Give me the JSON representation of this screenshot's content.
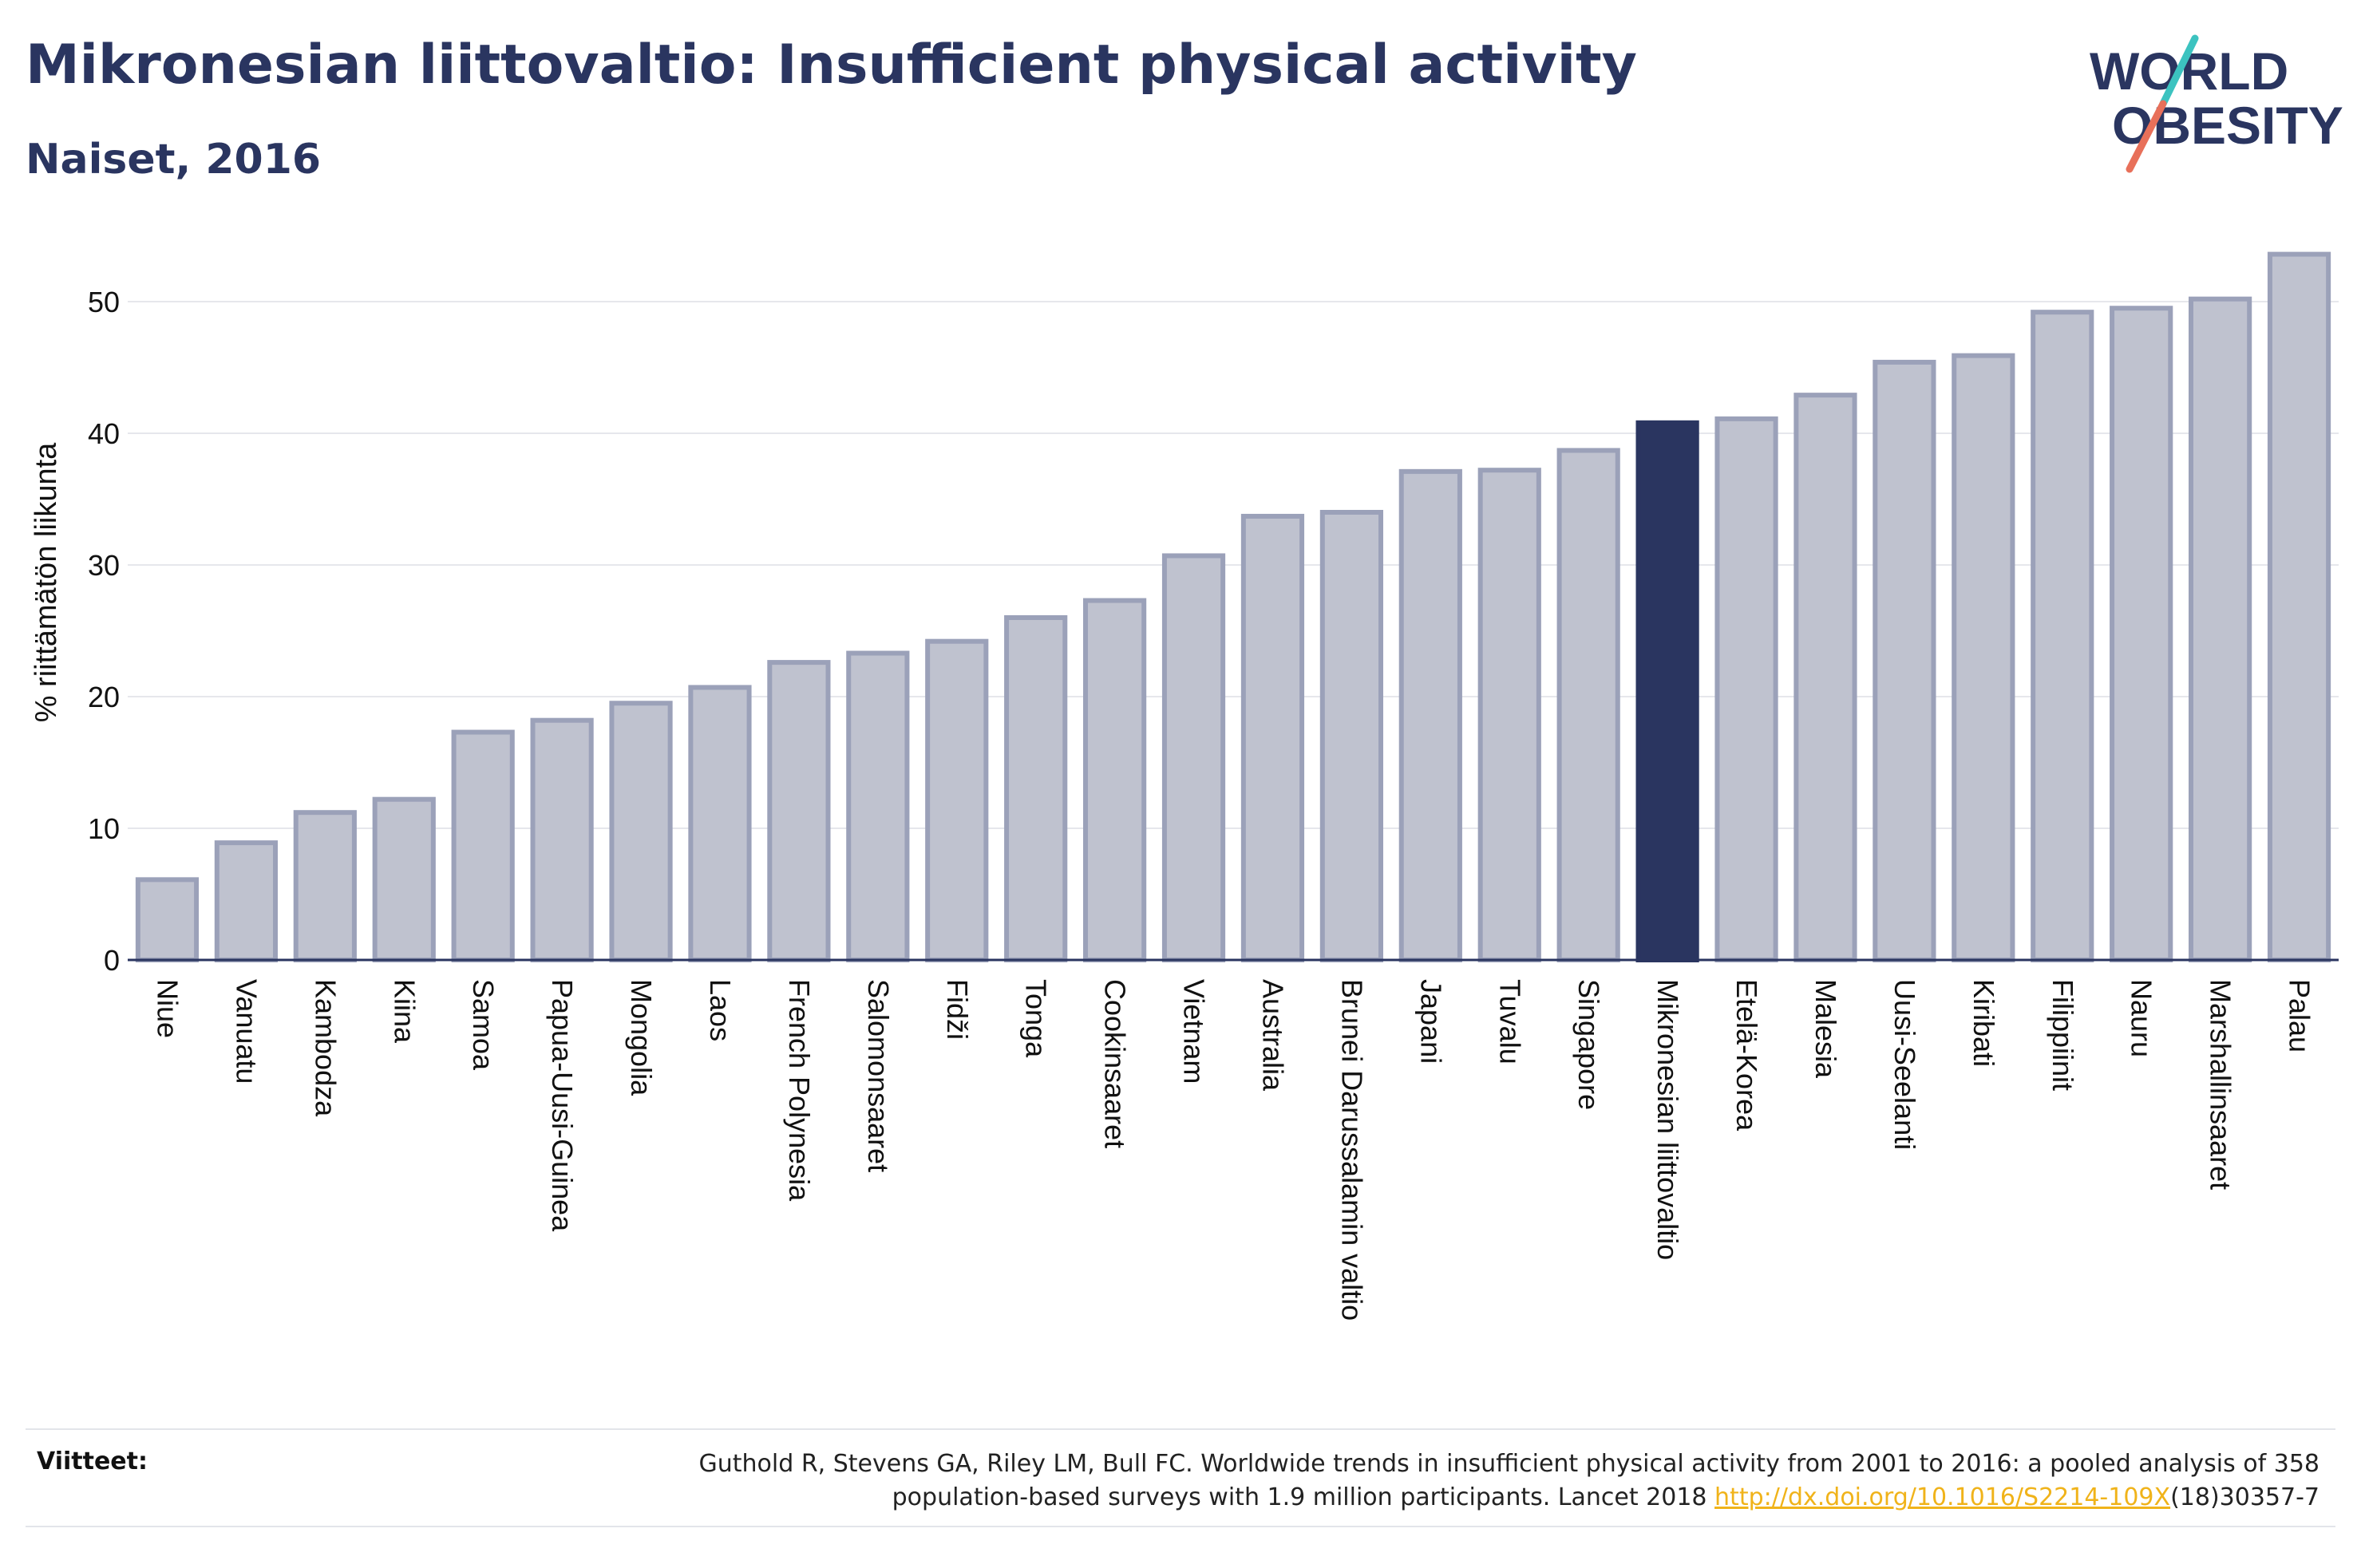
{
  "header": {
    "title": "Mikronesian liittovaltio: Insufficient physical activity",
    "subtitle": "Naiset, 2016"
  },
  "logo": {
    "line1": "WORLD",
    "line2": "OBESITY",
    "slash_colors": [
      "#3cc3c0",
      "#e8705a"
    ]
  },
  "colors": {
    "bar_default": "#bfc2cf",
    "bar_default_stroke": "#9ba1b9",
    "bar_highlight": "#2a3560",
    "text": "#2a3560",
    "grid": "#e6e7ec",
    "link": "#f0b31a"
  },
  "chart_data": {
    "type": "bar",
    "title": "",
    "xlabel": "",
    "ylabel": "% riittämätön liikunta",
    "ylim": [
      0,
      55
    ],
    "yticks": [
      0,
      10,
      20,
      30,
      40,
      50
    ],
    "grid": true,
    "highlight": "Mikronesian liittovaltio",
    "categories": [
      "Niue",
      "Vanuatu",
      "Kambodza",
      "Kiina",
      "Samoa",
      "Papua-Uusi-Guinea",
      "Mongolia",
      "Laos",
      "French Polynesia",
      "Salomonsaaret",
      "Fidži",
      "Tonga",
      "Cookinsaaret",
      "Vietnam",
      "Australia",
      "Brunei Darussalamin valtio",
      "Japani",
      "Tuvalu",
      "Singapore",
      "Mikronesian liittovaltio",
      "Etelä-Korea",
      "Malesia",
      "Uusi-Seelanti",
      "Kiribati",
      "Filippiinit",
      "Nauru",
      "Marshallinsaaret",
      "Palau"
    ],
    "values": [
      6.1,
      8.9,
      11.2,
      12.2,
      17.3,
      18.2,
      19.5,
      20.7,
      22.6,
      23.3,
      24.2,
      26.0,
      27.3,
      30.7,
      33.7,
      34.0,
      37.1,
      37.2,
      38.7,
      40.8,
      41.1,
      42.9,
      45.4,
      45.9,
      49.2,
      49.5,
      50.2,
      53.6
    ]
  },
  "references": {
    "label": "Viitteet:",
    "text_line1": "Guthold R, Stevens GA, Riley LM, Bull FC. Worldwide trends in insufficient physical activity from 2001 to 2016: a pooled analysis of 358",
    "text_line2_pre": "population-based surveys with 1.9 million participants. Lancet 2018 ",
    "link_text": "http://dx.doi.org/10.1016/S2214-109X",
    "text_line2_post": "(18)30357-7"
  }
}
